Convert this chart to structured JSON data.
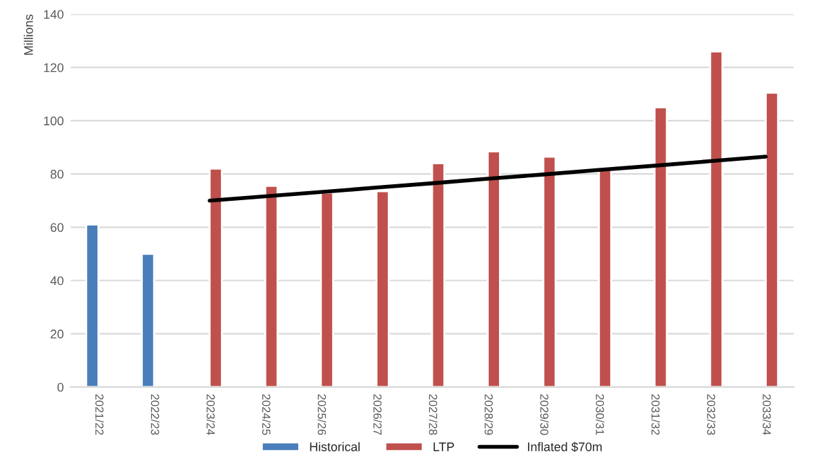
{
  "chart_data": {
    "type": "bar",
    "ylabel": "Millions",
    "categories": [
      "2021/22",
      "2022/23",
      "2023/24",
      "2024/25",
      "2025/26",
      "2026/27",
      "2027/28",
      "2028/29",
      "2029/30",
      "2030/31",
      "2031/32",
      "2032/33",
      "2033/34"
    ],
    "series": [
      {
        "name": "Historical",
        "color": "#4a7ebb",
        "values": [
          61,
          50,
          null,
          null,
          null,
          null,
          null,
          null,
          null,
          null,
          null,
          null,
          null
        ]
      },
      {
        "name": "LTP",
        "color": "#c0504d",
        "values": [
          null,
          null,
          82,
          75.5,
          73,
          73.5,
          84,
          88.5,
          86.5,
          81.5,
          105,
          126,
          110.5
        ]
      },
      {
        "name": "Inflated $70m",
        "type": "line",
        "color": "#000000",
        "values": [
          null,
          null,
          70,
          71.6,
          73.2,
          74.9,
          76.5,
          78.2,
          79.8,
          81.5,
          83.1,
          84.8,
          86.5
        ]
      }
    ],
    "ylim": [
      0,
      140
    ],
    "yticks": [
      0,
      20,
      40,
      60,
      80,
      100,
      120,
      140
    ],
    "grid": "y",
    "legend": "bottom"
  }
}
